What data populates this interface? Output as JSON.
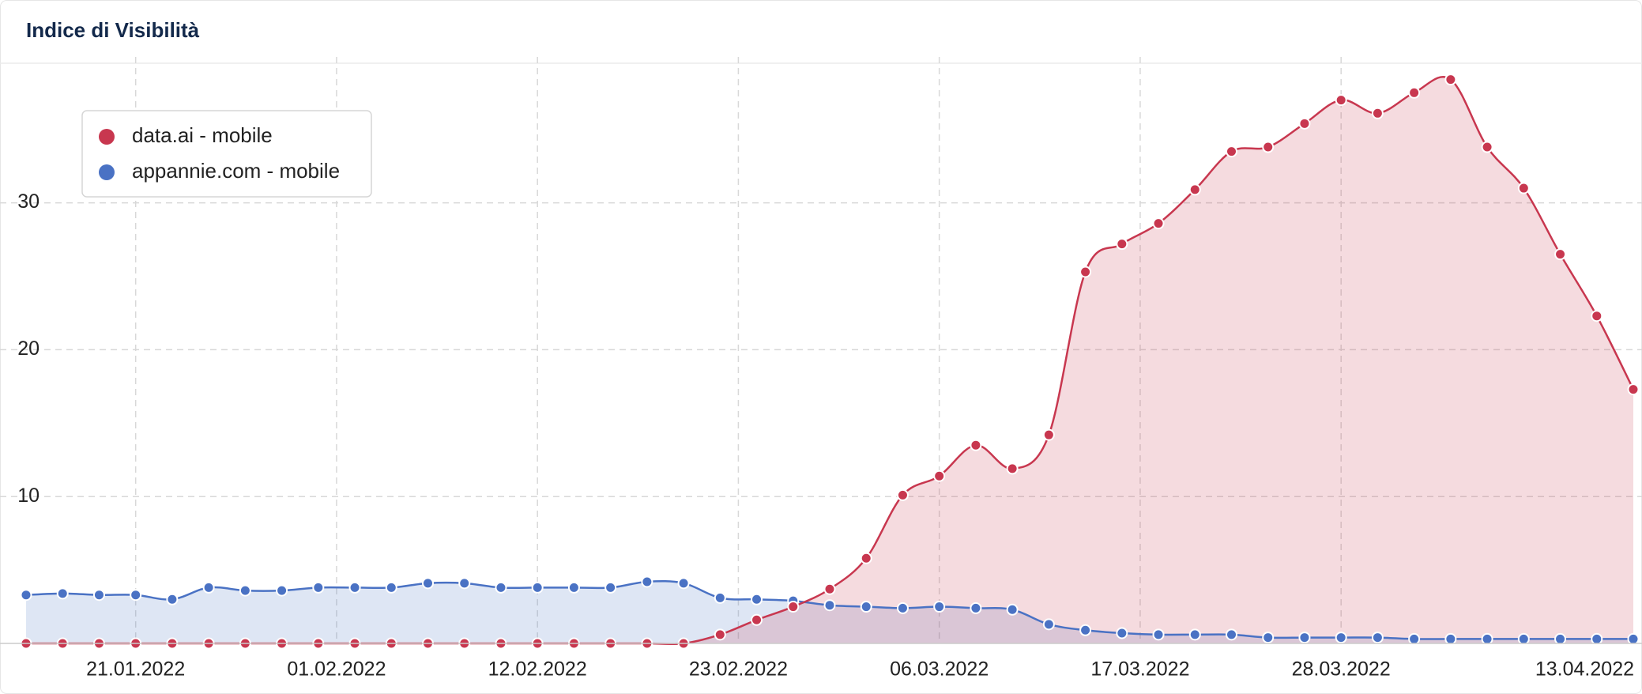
{
  "chart_data": {
    "type": "line",
    "title": "Indice di Visibilità",
    "x": [
      "15.01.2022",
      "17.01.2022",
      "19.01.2022",
      "21.01.2022",
      "23.01.2022",
      "25.01.2022",
      "27.01.2022",
      "29.01.2022",
      "31.01.2022",
      "02.02.2022",
      "04.02.2022",
      "06.02.2022",
      "08.02.2022",
      "10.02.2022",
      "12.02.2022",
      "14.02.2022",
      "16.02.2022",
      "18.02.2022",
      "20.02.2022",
      "22.02.2022",
      "24.02.2022",
      "26.02.2022",
      "28.02.2022",
      "02.03.2022",
      "04.03.2022",
      "06.03.2022",
      "08.03.2022",
      "10.03.2022",
      "12.03.2022",
      "14.03.2022",
      "16.03.2022",
      "18.03.2022",
      "20.03.2022",
      "22.03.2022",
      "24.03.2022",
      "26.03.2022",
      "28.03.2022",
      "30.03.2022",
      "01.04.2022",
      "03.04.2022",
      "05.04.2022",
      "07.04.2022",
      "09.04.2022",
      "11.04.2022",
      "13.04.2022"
    ],
    "series": [
      {
        "name": "data.ai - mobile",
        "color": "#c8374f",
        "values": [
          0,
          0,
          0,
          0,
          0,
          0,
          0,
          0,
          0,
          0,
          0,
          0,
          0,
          0,
          0,
          0,
          0,
          0,
          0,
          0.6,
          1.6,
          2.5,
          3.7,
          5.8,
          10.1,
          11.4,
          13.5,
          11.9,
          14.2,
          25.3,
          27.2,
          28.6,
          30.9,
          33.5,
          33.8,
          35.4,
          37.0,
          36.1,
          37.5,
          38.4,
          33.8,
          31.0,
          26.5,
          22.3,
          17.3
        ]
      },
      {
        "name": "appannie.com - mobile",
        "color": "#4a72c4",
        "values": [
          3.3,
          3.4,
          3.3,
          3.3,
          3.0,
          3.8,
          3.6,
          3.6,
          3.8,
          3.8,
          3.8,
          4.1,
          4.1,
          3.8,
          3.8,
          3.8,
          3.8,
          4.2,
          4.1,
          3.1,
          3.0,
          2.9,
          2.6,
          2.5,
          2.4,
          2.5,
          2.4,
          2.3,
          1.3,
          0.9,
          0.7,
          0.6,
          0.6,
          0.6,
          0.4,
          0.4,
          0.4,
          0.4,
          0.3,
          0.3,
          0.3,
          0.3,
          0.3,
          0.3,
          0.3
        ]
      }
    ],
    "xticks": [
      "21.01.2022",
      "01.02.2022",
      "12.02.2022",
      "23.02.2022",
      "06.03.2022",
      "17.03.2022",
      "28.03.2022",
      "13.04.2022"
    ],
    "ylim": [
      0,
      39.4
    ],
    "yticks": [
      10,
      20,
      30
    ],
    "grid": true
  }
}
